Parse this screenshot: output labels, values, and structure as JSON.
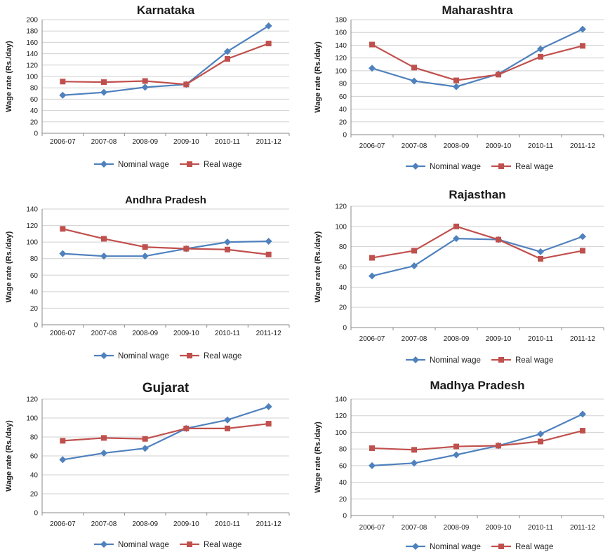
{
  "colors": {
    "nominal": "#4F81BD",
    "real": "#C0504D"
  },
  "chart_data": [
    {
      "type": "line",
      "title": "Karnataka",
      "categories": [
        "2006-07",
        "2007-08",
        "2008-09",
        "2009-10",
        "2010-11",
        "2011-12"
      ],
      "ylabel": "Wage rate (Rs./day)",
      "xlabel": "",
      "ylim": [
        0,
        200
      ],
      "ystep": 20,
      "grid": true,
      "legend": "bottom",
      "series": [
        {
          "name": "Nominal wage",
          "marker": "diamond",
          "values": [
            67,
            72,
            81,
            86,
            144,
            189
          ]
        },
        {
          "name": "Real wage",
          "marker": "square",
          "values": [
            91,
            90,
            92,
            86,
            131,
            158
          ]
        }
      ]
    },
    {
      "type": "line",
      "title": "Maharashtra",
      "categories": [
        "2006-07",
        "2007-08",
        "2008-09",
        "2009-10",
        "2010-11",
        "2011-12"
      ],
      "ylabel": "Wage rate (Rs./day)",
      "xlabel": "",
      "ylim": [
        0,
        180
      ],
      "ystep": 20,
      "grid": true,
      "legend": "bottom",
      "series": [
        {
          "name": "Nominal wage",
          "marker": "diamond",
          "values": [
            104,
            84,
            75,
            95,
            134,
            165
          ]
        },
        {
          "name": "Real wage",
          "marker": "square",
          "values": [
            141,
            105,
            85,
            94,
            122,
            139
          ]
        }
      ]
    },
    {
      "type": "line",
      "title": "Andhra Pradesh",
      "categories": [
        "2006-07",
        "2007-08",
        "2008-09",
        "2009-10",
        "2010-11",
        "2011-12"
      ],
      "ylabel": "Wage rate (Rs./day)",
      "xlabel": "",
      "ylim": [
        0,
        140
      ],
      "ystep": 20,
      "grid": true,
      "legend": "bottom",
      "series": [
        {
          "name": "Nominal wage",
          "marker": "diamond",
          "values": [
            86,
            83,
            83,
            92,
            100,
            101
          ]
        },
        {
          "name": "Real wage",
          "marker": "square",
          "values": [
            116,
            104,
            94,
            92,
            91,
            85
          ]
        }
      ]
    },
    {
      "type": "line",
      "title": "Rajasthan",
      "categories": [
        "2006-07",
        "2007-08",
        "2008-09",
        "2009-10",
        "2010-11",
        "2011-12"
      ],
      "ylabel": "Wage rate (Rs./day)",
      "xlabel": "",
      "ylim": [
        0,
        120
      ],
      "ystep": 20,
      "grid": true,
      "legend": "bottom",
      "series": [
        {
          "name": "Nominal wage",
          "marker": "diamond",
          "values": [
            51,
            61,
            88,
            87,
            75,
            90
          ]
        },
        {
          "name": "Real wage",
          "marker": "square",
          "values": [
            69,
            76,
            100,
            87,
            68,
            76
          ]
        }
      ]
    },
    {
      "type": "line",
      "title": "Gujarat",
      "categories": [
        "2006-07",
        "2007-08",
        "2008-09",
        "2009-10",
        "2010-11",
        "2011-12"
      ],
      "ylabel": "Wage rate (Rs./day)",
      "xlabel": "",
      "ylim": [
        0,
        120
      ],
      "ystep": 20,
      "grid": true,
      "legend": "bottom",
      "series": [
        {
          "name": "Nominal wage",
          "marker": "diamond",
          "values": [
            56,
            63,
            68,
            89,
            98,
            112
          ]
        },
        {
          "name": "Real wage",
          "marker": "square",
          "values": [
            76,
            79,
            78,
            89,
            89,
            94
          ]
        }
      ]
    },
    {
      "type": "line",
      "title": "Madhya Pradesh",
      "categories": [
        "2006-07",
        "2007-08",
        "2008-09",
        "2009-10",
        "2010-11",
        "2011-12"
      ],
      "ylabel": "Wage rate (Rs./day)",
      "xlabel": "",
      "ylim": [
        0,
        140
      ],
      "ystep": 20,
      "grid": true,
      "legend": "bottom",
      "series": [
        {
          "name": "Nominal wage",
          "marker": "diamond",
          "values": [
            60,
            63,
            73,
            84,
            98,
            122
          ]
        },
        {
          "name": "Real wage",
          "marker": "square",
          "values": [
            81,
            79,
            83,
            84,
            89,
            102
          ]
        }
      ]
    }
  ]
}
